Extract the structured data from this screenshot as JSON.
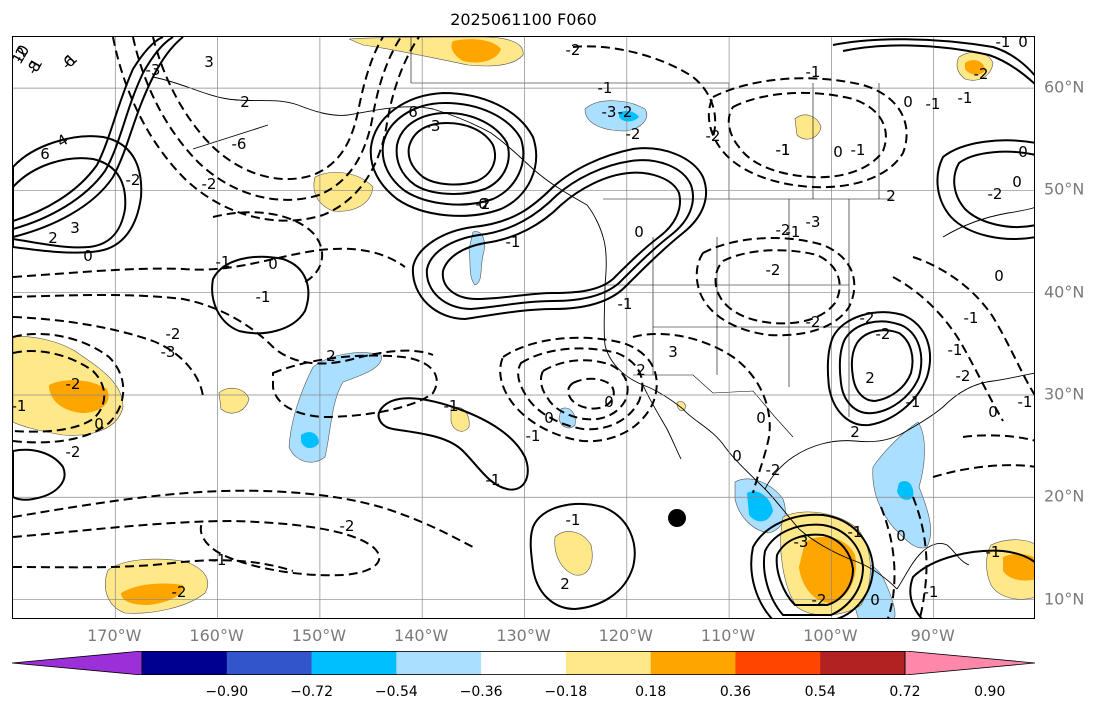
{
  "title": "2025061100 F060",
  "lon_labels": [
    "170°W",
    "160°W",
    "150°W",
    "140°W",
    "130°W",
    "120°W",
    "110°W",
    "100°W",
    "90°W"
  ],
  "lat_labels": [
    "60°N",
    "50°N",
    "40°N",
    "30°N",
    "20°N",
    "10°N"
  ],
  "colorbar": {
    "colors": [
      "#9b30d8",
      "#000090",
      "#3355cc",
      "#00bfff",
      "#aadfff",
      "#ffffff",
      "#ffe88a",
      "#ffa500",
      "#ff4500",
      "#b22222",
      "#ff88aa"
    ],
    "tick_labels": [
      "−0.90",
      "−0.72",
      "−0.54",
      "−0.36",
      "−0.18",
      "0.18",
      "0.36",
      "0.54",
      "0.72",
      "0.90"
    ]
  },
  "map": {
    "projection": "lat-lon",
    "lon_range": [
      "180°W",
      "80°W"
    ],
    "lat_range": [
      "8°N",
      "65°N"
    ],
    "marker": "filled-black-circle"
  },
  "contour_labels": [
    "10",
    "8",
    "6",
    "6",
    "4",
    "3",
    "2",
    "0",
    "-2",
    "-3",
    "3",
    "-6",
    "6",
    "-3",
    "0",
    "-2",
    "-1",
    "-3",
    "-2",
    "-2",
    "-1",
    "-3",
    "-2",
    "-1",
    "0",
    "-1",
    "-1",
    "0",
    "-2",
    "0",
    "-2",
    "-1",
    "0",
    "-1",
    "-2",
    "-1",
    "-2",
    "-2",
    "2",
    "-1",
    "2",
    "0",
    "-2",
    "-1",
    "-2",
    "-1",
    "0",
    "-1",
    "-2",
    "-2",
    "0",
    "-1",
    "-2",
    "-1",
    "2",
    "-2",
    "-3",
    "2",
    "-1",
    "0",
    "0",
    "2",
    "-1",
    "2",
    "-2",
    "-1",
    "-2",
    "-3",
    "-1",
    "-2",
    "0",
    "-1",
    "-2",
    "0",
    "-1",
    "-1",
    "0",
    "-1",
    "0",
    "0",
    "-2",
    "3",
    "-1",
    "-1",
    "-2",
    "0",
    "-1",
    "-1",
    "0",
    "2",
    "-2",
    "-1",
    "-1"
  ]
}
